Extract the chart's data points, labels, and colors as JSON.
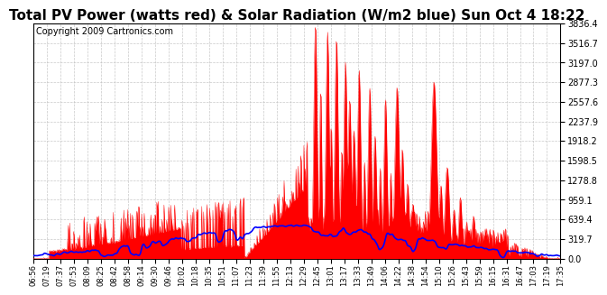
{
  "title": "Total PV Power (watts red) & Solar Radiation (W/m2 blue) Sun Oct 4 18:22",
  "copyright": "Copyright 2009 Cartronics.com",
  "ymax": 3836.4,
  "yticks": [
    0.0,
    319.7,
    639.4,
    959.1,
    1278.8,
    1598.5,
    1918.2,
    2237.9,
    2557.6,
    2877.3,
    3197.0,
    3516.7,
    3836.4
  ],
  "xtick_labels": [
    "06:56",
    "07:19",
    "07:37",
    "07:53",
    "08:09",
    "08:25",
    "08:42",
    "08:58",
    "09:14",
    "09:30",
    "09:46",
    "10:02",
    "10:18",
    "10:35",
    "10:51",
    "11:07",
    "11:23",
    "11:39",
    "11:55",
    "12:13",
    "12:29",
    "12:45",
    "13:01",
    "13:17",
    "13:33",
    "13:49",
    "14:06",
    "14:22",
    "14:38",
    "14:54",
    "15:10",
    "15:26",
    "15:43",
    "15:59",
    "16:15",
    "16:31",
    "16:47",
    "17:03",
    "17:19",
    "17:35"
  ],
  "bg_color": "#ffffff",
  "grid_color": "#bbbbbb",
  "title_font_size": 11,
  "copyright_font_size": 7
}
